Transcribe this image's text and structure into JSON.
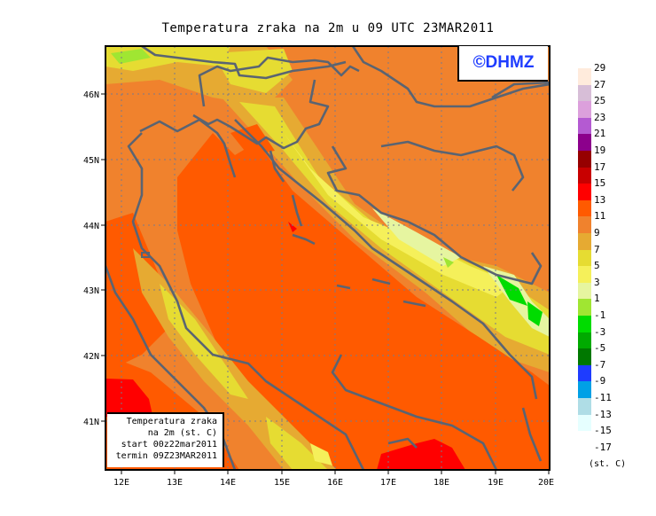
{
  "title": "Temperatura zraka na 2m u 09 UTC 23MAR2011",
  "logo": "©DHMZ",
  "legend_box": {
    "line1": "Temperatura zraka",
    "line2": "na 2m (st. C)",
    "line3": "start 00z22mar2011",
    "line4": "termin 09Z23MAR2011"
  },
  "axes": {
    "lon_labels": [
      "12E",
      "13E",
      "14E",
      "15E",
      "16E",
      "17E",
      "18E",
      "19E",
      "20E"
    ],
    "lat_labels": [
      "46N",
      "45N",
      "44N",
      "43N",
      "42N",
      "41N"
    ]
  },
  "colorbar": {
    "labels": [
      "29",
      "27",
      "25",
      "23",
      "21",
      "19",
      "17",
      "15",
      "13",
      "11",
      "9",
      "7",
      "5",
      "3",
      "1",
      "-1",
      "-3",
      "-5",
      "-7",
      "-9",
      "-11",
      "-13",
      "-15",
      "-17"
    ],
    "colors": [
      "#ffebdc",
      "#d7bed7",
      "#dca0dc",
      "#b45ad2",
      "#8c008c",
      "#960000",
      "#c80000",
      "#ff0000",
      "#ff5a00",
      "#f0822d",
      "#e6aa32",
      "#e6dc32",
      "#f5f05a",
      "#e6f5a0",
      "#a0e632",
      "#00dc00",
      "#00aa00",
      "#007800",
      "#1e3cff",
      "#00a0e6",
      "#afdde6",
      "#e6ffff"
    ],
    "unit": "(st. C)"
  }
}
